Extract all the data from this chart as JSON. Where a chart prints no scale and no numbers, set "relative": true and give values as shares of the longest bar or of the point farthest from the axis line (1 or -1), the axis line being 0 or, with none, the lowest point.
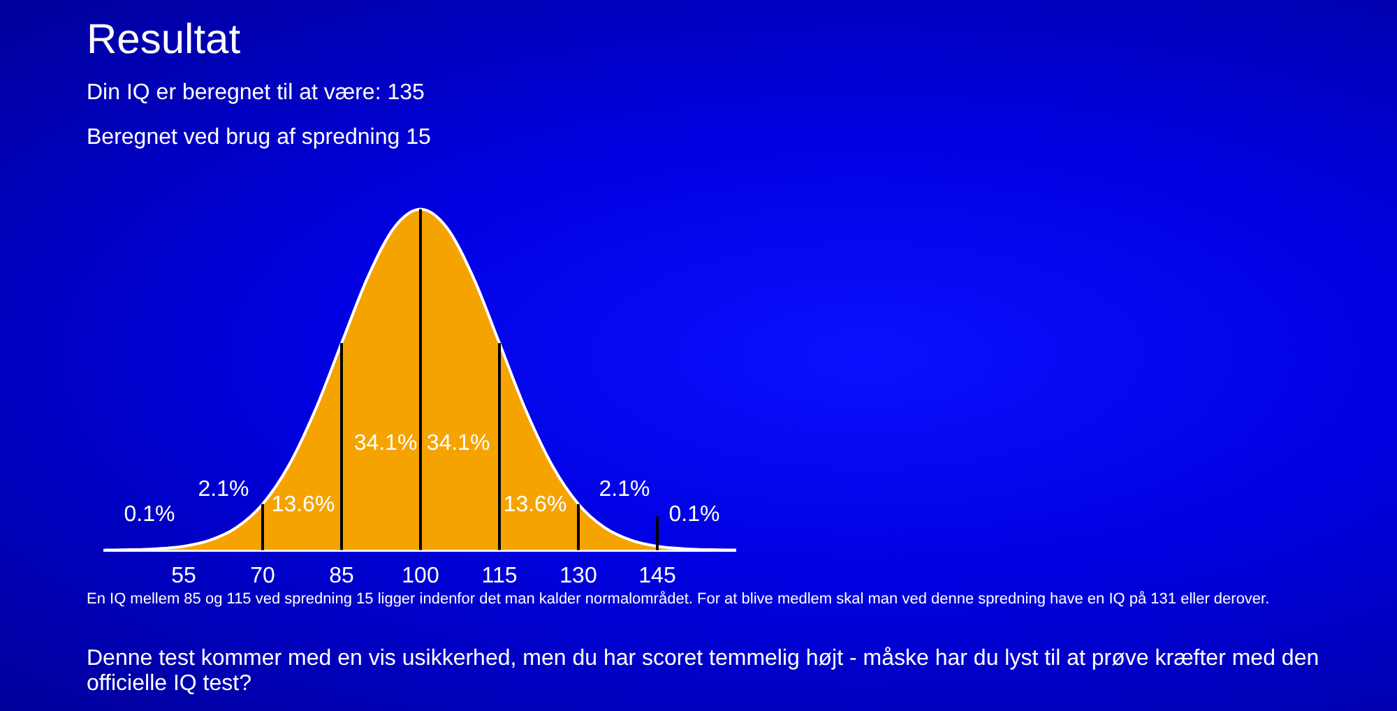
{
  "chart_data": {
    "type": "area",
    "title": "Resultat",
    "subtitle": "Din IQ er beregnet til at være: 135",
    "relative": true,
    "x": [
      40,
      45,
      50,
      55,
      60,
      65,
      70,
      75,
      80,
      85,
      90,
      95,
      100,
      105,
      110,
      115,
      120,
      125,
      130,
      135,
      140,
      145,
      150,
      155,
      160
    ],
    "series": [
      {
        "color": "#f5a300",
        "values": [
          0,
          0.001,
          0.004,
          0.011,
          0.029,
          0.066,
          0.135,
          0.249,
          0.411,
          0.607,
          0.801,
          0.946,
          1,
          0.946,
          0.801,
          0.607,
          0.411,
          0.249,
          0.135,
          0.066,
          0.029,
          0.011,
          0.004,
          0.001,
          0
        ]
      }
    ],
    "xlim": [
      40,
      160
    ],
    "xticks": [
      55,
      70,
      85,
      100,
      115,
      130,
      145
    ],
    "ref_lines": [
      {
        "axis": "x",
        "value": 70,
        "color": "#000000"
      },
      {
        "axis": "x",
        "value": 85,
        "color": "#000000"
      },
      {
        "axis": "x",
        "value": 100,
        "color": "#000000"
      },
      {
        "axis": "x",
        "value": 115,
        "color": "#000000"
      },
      {
        "axis": "x",
        "value": 130,
        "color": "#000000"
      },
      {
        "axis": "x",
        "value": 145,
        "color": "#000000"
      }
    ],
    "annotations": [
      "Beregnet ved brug af spredning 15",
      "0.1%",
      "2.1%",
      "13.6%",
      "34.1%",
      "34.1%",
      "13.6%",
      "2.1%",
      "0.1%",
      "En IQ mellem 85 og 115 ved spredning 15 ligger indenfor det man kalder normalområdet. For at blive medlem skal man ved denne spredning have en IQ på 131 eller derover.",
      "Denne test kommer med en vis usikkerhed, men du har scoret temmelig højt - måske har du lyst til at prøve kræfter med den officielle IQ test?"
    ]
  }
}
